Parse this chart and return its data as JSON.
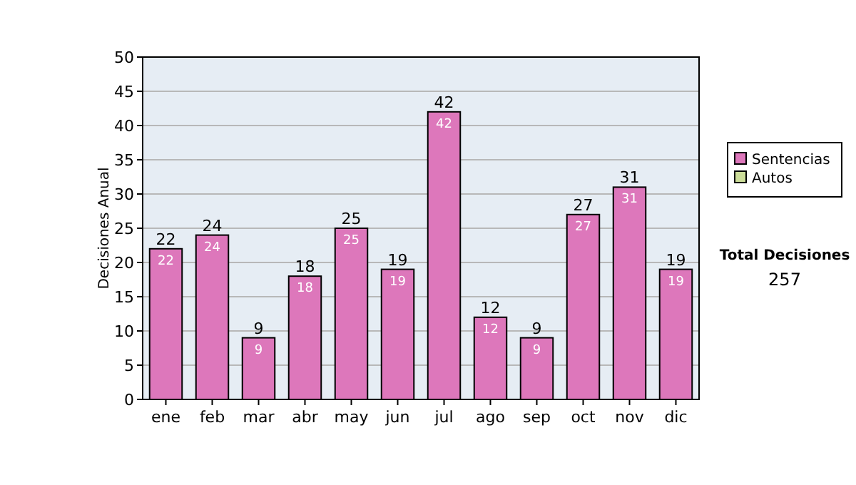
{
  "chart_data": {
    "type": "bar",
    "ylabel": "Decisiones Anual",
    "categories": [
      "ene",
      "feb",
      "mar",
      "abr",
      "may",
      "jun",
      "jul",
      "ago",
      "sep",
      "oct",
      "nov",
      "dic"
    ],
    "series": [
      {
        "name": "Sentencias",
        "color": "#dd77bb",
        "values": [
          22,
          24,
          9,
          18,
          25,
          19,
          42,
          12,
          9,
          27,
          31,
          19
        ],
        "value_labels": [
          "22",
          "24",
          "9",
          "18",
          "25",
          "19",
          "42",
          "12",
          "9",
          "27",
          "31",
          "19"
        ]
      },
      {
        "name": "Autos",
        "color": "#ccdd99",
        "values": [
          0,
          0,
          0,
          0,
          0,
          0,
          0,
          0,
          0,
          0,
          0,
          0
        ],
        "value_labels": [
          null,
          null,
          null,
          null,
          null,
          null,
          null,
          null,
          null,
          null,
          null,
          null
        ]
      }
    ],
    "stacked": true,
    "totals": [
      "22",
      "24",
      "9",
      "18",
      "25",
      "19",
      "42",
      "12",
      "9",
      "27",
      "31",
      "19"
    ],
    "ylim": [
      0,
      50
    ],
    "yticks": [
      0,
      5,
      10,
      15,
      20,
      25,
      30,
      35,
      40,
      45,
      50
    ],
    "grid": "y",
    "legend": "right",
    "annotations": [
      "Total Decisiones",
      "257"
    ]
  }
}
